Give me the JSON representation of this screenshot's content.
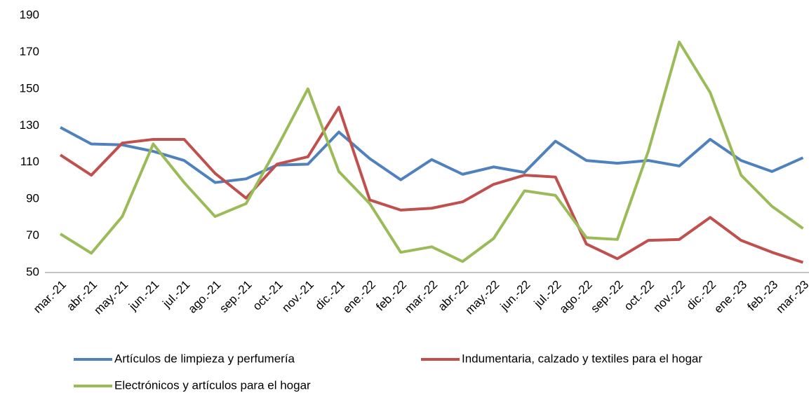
{
  "chart_data": {
    "type": "line",
    "categories": [
      "mar.-21",
      "abr.-21",
      "may.-21",
      "jun.-21",
      "jul.-21",
      "ago.-21",
      "sep.-21",
      "oct.-21",
      "nov.-21",
      "dic.-21",
      "ene.-22",
      "feb.-22",
      "mar.-22",
      "abr.-22",
      "may.-22",
      "jun.-22",
      "jul.-22",
      "ago.-22",
      "sep.-22",
      "oct.-22",
      "nov.-22",
      "dic.-22",
      "ene.-23",
      "feb.-23",
      "mar.-23"
    ],
    "series": [
      {
        "name": "Artículos de limpieza y perfumería",
        "color": "#4f81bd",
        "values": [
          129,
          120,
          119.5,
          116,
          111,
          99,
          101,
          108.5,
          109,
          126.5,
          112,
          100.5,
          111.5,
          103.5,
          107.5,
          104.5,
          121.5,
          111,
          109.5,
          111,
          108,
          122.5,
          111,
          105,
          112.5
        ]
      },
      {
        "name": "Indumentaria, calzado y textiles para el hogar",
        "color": "#c0504d",
        "values": [
          114,
          103,
          120.5,
          122.5,
          122.5,
          104,
          90.5,
          109,
          113,
          140,
          89.5,
          84,
          85,
          88.5,
          98,
          103,
          102,
          65.5,
          57.5,
          67.5,
          68,
          80,
          67.5,
          61,
          55.5
        ]
      },
      {
        "name": "Electrónicos y artículos para el hogar",
        "color": "#9bbb59",
        "values": [
          71,
          60.5,
          80.5,
          120,
          99,
          80.5,
          87.5,
          118,
          150,
          105,
          87.5,
          61,
          64,
          56,
          68.5,
          94.5,
          92,
          69,
          68,
          116,
          175.5,
          148,
          103,
          86,
          74
        ]
      }
    ],
    "ylim": [
      50,
      190
    ],
    "yticks": [
      50,
      70,
      90,
      110,
      130,
      150,
      170,
      190
    ]
  }
}
